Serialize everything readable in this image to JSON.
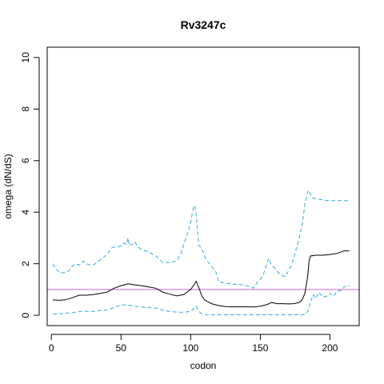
{
  "chart_data": {
    "type": "line",
    "title": "Rv3247c",
    "xlabel": "codon",
    "ylabel": "omega (dN/dS)",
    "xlim": [
      -3,
      221
    ],
    "ylim": [
      -0.4,
      10.4
    ],
    "xticks": [
      0,
      50,
      100,
      150,
      200
    ],
    "yticks": [
      0,
      2,
      4,
      6,
      8,
      10
    ],
    "reference_line": {
      "y": 1,
      "color": "#cc66cc"
    },
    "colors": {
      "estimate": "#000000",
      "ci": "#33aadd"
    },
    "series": [
      {
        "role": "estimate",
        "style": "solid",
        "x": [
          1,
          5,
          10,
          15,
          20,
          25,
          30,
          35,
          40,
          45,
          50,
          55,
          60,
          65,
          70,
          75,
          80,
          85,
          90,
          95,
          100,
          102,
          104,
          106,
          108,
          110,
          115,
          120,
          125,
          130,
          135,
          140,
          145,
          150,
          155,
          158,
          162,
          166,
          170,
          174,
          178,
          180,
          182,
          184,
          185,
          186,
          190,
          195,
          200,
          205,
          210,
          214
        ],
        "values": [
          0.6,
          0.58,
          0.6,
          0.68,
          0.78,
          0.78,
          0.8,
          0.85,
          0.9,
          1.05,
          1.15,
          1.22,
          1.18,
          1.15,
          1.1,
          1.05,
          0.9,
          0.82,
          0.75,
          0.8,
          1.0,
          1.15,
          1.32,
          1.05,
          0.75,
          0.6,
          0.45,
          0.38,
          0.34,
          0.33,
          0.33,
          0.33,
          0.32,
          0.35,
          0.42,
          0.5,
          0.45,
          0.45,
          0.44,
          0.45,
          0.5,
          0.6,
          0.85,
          1.5,
          2.1,
          2.3,
          2.33,
          2.33,
          2.36,
          2.4,
          2.5,
          2.5
        ]
      },
      {
        "role": "upper-ci",
        "style": "dashed",
        "x": [
          1,
          3,
          6,
          9,
          12,
          15,
          17,
          20,
          23,
          25,
          28,
          30,
          33,
          36,
          40,
          43,
          45,
          48,
          50,
          52,
          54,
          55,
          56,
          58,
          60,
          62,
          65,
          70,
          75,
          80,
          85,
          90,
          93,
          96,
          98,
          100,
          101,
          102,
          103,
          104,
          105,
          106,
          108,
          110,
          112,
          115,
          118,
          120,
          125,
          130,
          135,
          140,
          143,
          145,
          148,
          150,
          152,
          154,
          156,
          158,
          160,
          162,
          165,
          168,
          170,
          172,
          175,
          178,
          180,
          182,
          184,
          185,
          186,
          188,
          192,
          198,
          205,
          210,
          214
        ],
        "values": [
          2.0,
          1.8,
          1.65,
          1.65,
          1.7,
          1.9,
          2.0,
          1.95,
          2.1,
          2.0,
          1.95,
          1.95,
          2.05,
          2.2,
          2.35,
          2.6,
          2.65,
          2.65,
          2.7,
          2.8,
          2.75,
          3.0,
          2.7,
          2.75,
          2.85,
          2.65,
          2.55,
          2.45,
          2.3,
          2.05,
          2.05,
          2.1,
          2.4,
          2.9,
          3.2,
          3.6,
          3.9,
          4.2,
          4.25,
          3.9,
          3.2,
          2.7,
          2.6,
          2.3,
          2.1,
          1.9,
          1.7,
          1.3,
          1.25,
          1.2,
          1.2,
          1.15,
          1.1,
          1.05,
          1.3,
          1.4,
          1.55,
          1.9,
          2.2,
          1.95,
          1.85,
          1.7,
          1.55,
          1.5,
          1.7,
          1.9,
          2.4,
          3.0,
          3.5,
          4.3,
          4.8,
          4.85,
          4.7,
          4.55,
          4.5,
          4.45,
          4.45,
          4.45,
          4.45
        ]
      },
      {
        "role": "lower-ci",
        "style": "dashed",
        "x": [
          1,
          5,
          10,
          15,
          20,
          25,
          30,
          35,
          40,
          45,
          50,
          55,
          60,
          65,
          70,
          75,
          80,
          85,
          90,
          95,
          100,
          102,
          104,
          106,
          108,
          110,
          115,
          120,
          125,
          130,
          140,
          150,
          160,
          170,
          180,
          182,
          184,
          186,
          188,
          190,
          192,
          195,
          198,
          200,
          203,
          205,
          208,
          210,
          214
        ],
        "values": [
          0.05,
          0.05,
          0.08,
          0.1,
          0.15,
          0.15,
          0.15,
          0.18,
          0.2,
          0.3,
          0.4,
          0.4,
          0.35,
          0.32,
          0.3,
          0.28,
          0.2,
          0.15,
          0.12,
          0.12,
          0.15,
          0.25,
          0.35,
          0.15,
          0.05,
          0.03,
          0.02,
          0.02,
          0.02,
          0.02,
          0.02,
          0.02,
          0.02,
          0.02,
          0.02,
          0.05,
          0.15,
          0.5,
          0.8,
          0.65,
          0.9,
          0.7,
          0.75,
          0.85,
          0.75,
          0.95,
          0.95,
          1.1,
          1.15
        ]
      }
    ]
  }
}
